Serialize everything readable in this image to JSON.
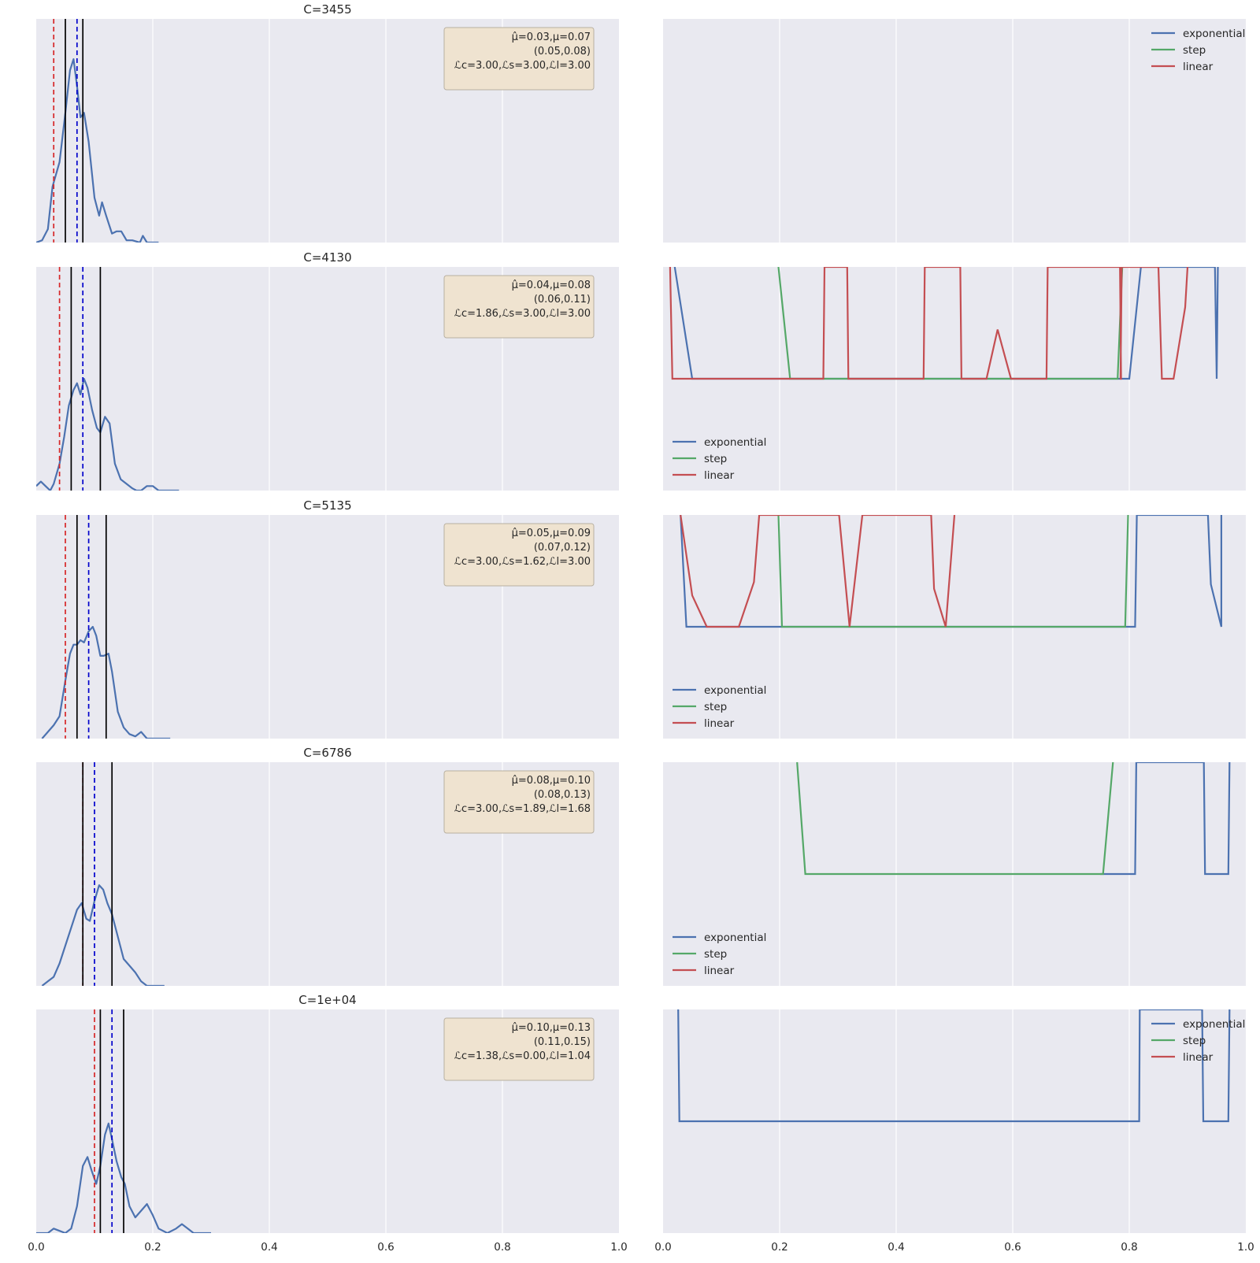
{
  "chart_data": [
    {
      "type": "line",
      "panel": "left",
      "title": "C=3455",
      "xlim": [
        0,
        1
      ],
      "grid": true,
      "x_ticks": [
        "0.0",
        "0.2",
        "0.4",
        "0.6",
        "0.8",
        "1.0"
      ],
      "vlines": [
        {
          "x": 0.03,
          "style": "dashed",
          "color": "#d62728"
        },
        {
          "x": 0.07,
          "style": "dashed",
          "color": "#0000cc"
        },
        {
          "x": 0.05,
          "style": "solid",
          "color": "#000000"
        },
        {
          "x": 0.08,
          "style": "solid",
          "color": "#000000"
        }
      ],
      "annotation": {
        "lines": [
          "μ̂=0.03,μ=0.07",
          "(0.05,0.08)",
          "ℒc=3.00,ℒs=3.00,ℒl=3.00"
        ],
        "placement": "top-right"
      },
      "density": [
        [
          0.0,
          0
        ],
        [
          0.01,
          0.01
        ],
        [
          0.02,
          0.06
        ],
        [
          0.028,
          0.25
        ],
        [
          0.04,
          0.36
        ],
        [
          0.05,
          0.58
        ],
        [
          0.058,
          0.77
        ],
        [
          0.064,
          0.82
        ],
        [
          0.07,
          0.7
        ],
        [
          0.076,
          0.56
        ],
        [
          0.082,
          0.58
        ],
        [
          0.09,
          0.45
        ],
        [
          0.1,
          0.2
        ],
        [
          0.108,
          0.12
        ],
        [
          0.113,
          0.18
        ],
        [
          0.12,
          0.12
        ],
        [
          0.13,
          0.04
        ],
        [
          0.138,
          0.05
        ],
        [
          0.146,
          0.05
        ],
        [
          0.155,
          0.01
        ],
        [
          0.165,
          0.01
        ],
        [
          0.178,
          0.0
        ],
        [
          0.183,
          0.03
        ],
        [
          0.19,
          0.0
        ],
        [
          0.21,
          0.0
        ]
      ]
    },
    {
      "type": "line",
      "panel": "right",
      "xlim": [
        0,
        1
      ],
      "grid": true,
      "x_ticks": [
        "0.0",
        "0.2",
        "0.4",
        "0.6",
        "0.8",
        "1.0"
      ],
      "legend": {
        "placement": "top-right"
      },
      "series": [
        {
          "name": "exponential",
          "color": "#4c72b0",
          "points": []
        },
        {
          "name": "step",
          "color": "#55a868",
          "points": []
        },
        {
          "name": "linear",
          "color": "#c44e52",
          "points": []
        }
      ]
    },
    {
      "type": "line",
      "panel": "left",
      "title": "C=4130",
      "xlim": [
        0,
        1
      ],
      "grid": true,
      "x_ticks": [
        "0.0",
        "0.2",
        "0.4",
        "0.6",
        "0.8",
        "1.0"
      ],
      "vlines": [
        {
          "x": 0.04,
          "style": "dashed",
          "color": "#d62728"
        },
        {
          "x": 0.08,
          "style": "dashed",
          "color": "#0000cc"
        },
        {
          "x": 0.06,
          "style": "solid",
          "color": "#000000"
        },
        {
          "x": 0.11,
          "style": "solid",
          "color": "#000000"
        }
      ],
      "annotation": {
        "lines": [
          "μ̂=0.04,μ=0.08",
          "(0.06,0.11)",
          "ℒc=1.86,ℒs=3.00,ℒl=3.00"
        ],
        "placement": "top-right"
      },
      "density": [
        [
          0.0,
          0.02
        ],
        [
          0.008,
          0.04
        ],
        [
          0.016,
          0.02
        ],
        [
          0.024,
          0.0
        ],
        [
          0.03,
          0.03
        ],
        [
          0.04,
          0.12
        ],
        [
          0.048,
          0.24
        ],
        [
          0.056,
          0.38
        ],
        [
          0.064,
          0.45
        ],
        [
          0.07,
          0.48
        ],
        [
          0.076,
          0.43
        ],
        [
          0.082,
          0.5
        ],
        [
          0.088,
          0.46
        ],
        [
          0.096,
          0.36
        ],
        [
          0.104,
          0.28
        ],
        [
          0.11,
          0.26
        ],
        [
          0.118,
          0.33
        ],
        [
          0.126,
          0.3
        ],
        [
          0.135,
          0.12
        ],
        [
          0.145,
          0.05
        ],
        [
          0.155,
          0.03
        ],
        [
          0.165,
          0.01
        ],
        [
          0.172,
          0.0
        ],
        [
          0.18,
          0.0
        ],
        [
          0.19,
          0.02
        ],
        [
          0.2,
          0.02
        ],
        [
          0.21,
          0.0
        ],
        [
          0.245,
          0.0
        ]
      ]
    },
    {
      "type": "line",
      "panel": "right",
      "xlim": [
        0,
        1
      ],
      "grid": true,
      "x_ticks": [
        "0.0",
        "0.2",
        "0.4",
        "0.6",
        "0.8",
        "1.0"
      ],
      "legend": {
        "placement": "bottom-left"
      },
      "series": [
        {
          "name": "exponential",
          "color": "#4c72b0",
          "points": [
            [
              0.02,
              1.0
            ],
            [
              0.05,
              0.5
            ],
            [
              0.8,
              0.5
            ],
            [
              0.82,
              1.0
            ],
            [
              0.947,
              1.0
            ],
            [
              0.95,
              0.5
            ],
            [
              0.952,
              1.0
            ]
          ]
        },
        {
          "name": "step",
          "color": "#55a868",
          "points": [
            [
              0.198,
              1.0
            ],
            [
              0.218,
              0.5
            ],
            [
              0.78,
              0.5
            ],
            [
              0.788,
              1.0
            ]
          ]
        },
        {
          "name": "linear",
          "color": "#c44e52",
          "points": [
            [
              0.012,
              1.0
            ],
            [
              0.016,
              0.5
            ],
            [
              0.275,
              0.5
            ],
            [
              0.277,
              1.0
            ],
            [
              0.316,
              1.0
            ],
            [
              0.318,
              0.5
            ],
            [
              0.447,
              0.5
            ],
            [
              0.449,
              1.0
            ],
            [
              0.51,
              1.0
            ],
            [
              0.512,
              0.5
            ],
            [
              0.555,
              0.5
            ],
            [
              0.574,
              0.72
            ],
            [
              0.597,
              0.5
            ],
            [
              0.658,
              0.5
            ],
            [
              0.66,
              1.0
            ],
            [
              0.784,
              1.0
            ],
            [
              0.786,
              0.5
            ],
            [
              0.785,
              0.5
            ],
            [
              0.787,
              1.0
            ],
            [
              0.85,
              1.0
            ],
            [
              0.856,
              0.5
            ],
            [
              0.876,
              0.5
            ],
            [
              0.896,
              0.82
            ],
            [
              0.9,
              1.0
            ]
          ]
        }
      ]
    },
    {
      "type": "line",
      "panel": "left",
      "title": "C=5135",
      "xlim": [
        0,
        1
      ],
      "grid": true,
      "x_ticks": [
        "0.0",
        "0.2",
        "0.4",
        "0.6",
        "0.8",
        "1.0"
      ],
      "vlines": [
        {
          "x": 0.05,
          "style": "dashed",
          "color": "#d62728"
        },
        {
          "x": 0.09,
          "style": "dashed",
          "color": "#0000cc"
        },
        {
          "x": 0.07,
          "style": "solid",
          "color": "#000000"
        },
        {
          "x": 0.12,
          "style": "solid",
          "color": "#000000"
        }
      ],
      "annotation": {
        "lines": [
          "μ̂=0.05,μ=0.09",
          "(0.07,0.12)",
          "ℒc=3.00,ℒs=1.62,ℒl=3.00"
        ],
        "placement": "top-right"
      },
      "density": [
        [
          0.01,
          0.0
        ],
        [
          0.02,
          0.03
        ],
        [
          0.03,
          0.06
        ],
        [
          0.04,
          0.1
        ],
        [
          0.05,
          0.26
        ],
        [
          0.058,
          0.38
        ],
        [
          0.064,
          0.42
        ],
        [
          0.07,
          0.42
        ],
        [
          0.076,
          0.44
        ],
        [
          0.082,
          0.43
        ],
        [
          0.09,
          0.48
        ],
        [
          0.097,
          0.5
        ],
        [
          0.103,
          0.46
        ],
        [
          0.11,
          0.37
        ],
        [
          0.116,
          0.37
        ],
        [
          0.124,
          0.38
        ],
        [
          0.13,
          0.3
        ],
        [
          0.14,
          0.12
        ],
        [
          0.15,
          0.05
        ],
        [
          0.16,
          0.02
        ],
        [
          0.17,
          0.01
        ],
        [
          0.18,
          0.03
        ],
        [
          0.19,
          0.0
        ],
        [
          0.23,
          0.0
        ]
      ]
    },
    {
      "type": "line",
      "panel": "right",
      "xlim": [
        0,
        1
      ],
      "grid": true,
      "x_ticks": [
        "0.0",
        "0.2",
        "0.4",
        "0.6",
        "0.8",
        "1.0"
      ],
      "legend": {
        "placement": "bottom-left"
      },
      "series": [
        {
          "name": "exponential",
          "color": "#4c72b0",
          "points": [
            [
              0.03,
              1.0
            ],
            [
              0.04,
              0.5
            ],
            [
              0.81,
              0.5
            ],
            [
              0.813,
              1.0
            ],
            [
              0.935,
              1.0
            ],
            [
              0.94,
              0.69
            ],
            [
              0.958,
              0.5
            ],
            [
              0.958,
              1.0
            ]
          ]
        },
        {
          "name": "step",
          "color": "#55a868",
          "points": [
            [
              0.198,
              1.0
            ],
            [
              0.204,
              0.5
            ],
            [
              0.793,
              0.5
            ],
            [
              0.798,
              1.0
            ]
          ]
        },
        {
          "name": "linear",
          "color": "#c44e52",
          "points": [
            [
              0.03,
              1.0
            ],
            [
              0.05,
              0.64
            ],
            [
              0.075,
              0.5
            ],
            [
              0.13,
              0.5
            ],
            [
              0.156,
              0.7
            ],
            [
              0.165,
              1.0
            ],
            [
              0.302,
              1.0
            ],
            [
              0.32,
              0.5
            ],
            [
              0.342,
              1.0
            ],
            [
              0.46,
              1.0
            ],
            [
              0.465,
              0.67
            ],
            [
              0.485,
              0.5
            ],
            [
              0.5,
              1.0
            ]
          ]
        }
      ]
    },
    {
      "type": "line",
      "panel": "left",
      "title": "C=6786",
      "xlim": [
        0,
        1
      ],
      "grid": true,
      "x_ticks": [
        "0.0",
        "0.2",
        "0.4",
        "0.6",
        "0.8",
        "1.0"
      ],
      "vlines": [
        {
          "x": 0.08,
          "style": "dashed",
          "color": "#d62728"
        },
        {
          "x": 0.1,
          "style": "dashed",
          "color": "#0000cc"
        },
        {
          "x": 0.08,
          "style": "solid",
          "color": "#000000"
        },
        {
          "x": 0.13,
          "style": "solid",
          "color": "#000000"
        }
      ],
      "annotation": {
        "lines": [
          "μ̂=0.08,μ=0.10",
          "(0.08,0.13)",
          "ℒc=3.00,ℒs=1.89,ℒl=1.68"
        ],
        "placement": "top-right"
      },
      "density": [
        [
          0.01,
          0.0
        ],
        [
          0.02,
          0.02
        ],
        [
          0.03,
          0.04
        ],
        [
          0.04,
          0.1
        ],
        [
          0.05,
          0.18
        ],
        [
          0.06,
          0.26
        ],
        [
          0.07,
          0.34
        ],
        [
          0.078,
          0.37
        ],
        [
          0.086,
          0.3
        ],
        [
          0.092,
          0.29
        ],
        [
          0.1,
          0.38
        ],
        [
          0.108,
          0.45
        ],
        [
          0.115,
          0.43
        ],
        [
          0.122,
          0.37
        ],
        [
          0.13,
          0.32
        ],
        [
          0.14,
          0.22
        ],
        [
          0.15,
          0.12
        ],
        [
          0.16,
          0.09
        ],
        [
          0.17,
          0.06
        ],
        [
          0.18,
          0.02
        ],
        [
          0.19,
          0.0
        ],
        [
          0.22,
          0.0
        ]
      ]
    },
    {
      "type": "line",
      "panel": "right",
      "xlim": [
        0,
        1
      ],
      "grid": true,
      "x_ticks": [
        "0.0",
        "0.2",
        "0.4",
        "0.6",
        "0.8",
        "1.0"
      ],
      "legend": {
        "placement": "bottom-left"
      },
      "series": [
        {
          "name": "exponential",
          "color": "#4c72b0",
          "points": [
            [
              0.75,
              0.5
            ],
            [
              0.81,
              0.5
            ],
            [
              0.812,
              1.0
            ],
            [
              0.928,
              1.0
            ],
            [
              0.93,
              0.5
            ],
            [
              0.97,
              0.5
            ],
            [
              0.972,
              1.0
            ]
          ]
        },
        {
          "name": "step",
          "color": "#55a868",
          "points": [
            [
              0.23,
              1.0
            ],
            [
              0.244,
              0.5
            ],
            [
              0.755,
              0.5
            ],
            [
              0.772,
              1.0
            ]
          ]
        },
        {
          "name": "linear",
          "color": "#c44e52",
          "points": []
        }
      ]
    },
    {
      "type": "line",
      "panel": "left",
      "title": "C=1e+04",
      "xlim": [
        0,
        1
      ],
      "grid": true,
      "x_ticks": [
        "0.0",
        "0.2",
        "0.4",
        "0.6",
        "0.8",
        "1.0"
      ],
      "vlines": [
        {
          "x": 0.1,
          "style": "dashed",
          "color": "#d62728"
        },
        {
          "x": 0.13,
          "style": "dashed",
          "color": "#0000cc"
        },
        {
          "x": 0.11,
          "style": "solid",
          "color": "#000000"
        },
        {
          "x": 0.15,
          "style": "solid",
          "color": "#000000"
        }
      ],
      "annotation": {
        "lines": [
          "μ̂=0.10,μ=0.13",
          "(0.11,0.15)",
          "ℒc=1.38,ℒs=0.00,ℒl=1.04"
        ],
        "placement": "top-right"
      },
      "density": [
        [
          0.0,
          0.0
        ],
        [
          0.02,
          0.0
        ],
        [
          0.03,
          0.02
        ],
        [
          0.04,
          0.01
        ],
        [
          0.05,
          0.0
        ],
        [
          0.06,
          0.02
        ],
        [
          0.07,
          0.12
        ],
        [
          0.08,
          0.3
        ],
        [
          0.088,
          0.34
        ],
        [
          0.095,
          0.28
        ],
        [
          0.103,
          0.22
        ],
        [
          0.11,
          0.3
        ],
        [
          0.118,
          0.44
        ],
        [
          0.124,
          0.49
        ],
        [
          0.13,
          0.42
        ],
        [
          0.138,
          0.32
        ],
        [
          0.146,
          0.25
        ],
        [
          0.152,
          0.22
        ],
        [
          0.16,
          0.12
        ],
        [
          0.17,
          0.07
        ],
        [
          0.18,
          0.1
        ],
        [
          0.19,
          0.13
        ],
        [
          0.2,
          0.08
        ],
        [
          0.21,
          0.02
        ],
        [
          0.225,
          0.0
        ],
        [
          0.24,
          0.02
        ],
        [
          0.25,
          0.04
        ],
        [
          0.26,
          0.02
        ],
        [
          0.27,
          0.0
        ],
        [
          0.3,
          0.0
        ]
      ]
    },
    {
      "type": "line",
      "panel": "right",
      "xlim": [
        0,
        1
      ],
      "grid": true,
      "x_ticks": [
        "0.0",
        "0.2",
        "0.4",
        "0.6",
        "0.8",
        "1.0"
      ],
      "legend": {
        "placement": "top-right"
      },
      "series": [
        {
          "name": "exponential",
          "color": "#4c72b0",
          "points": [
            [
              0.026,
              1.0
            ],
            [
              0.028,
              0.5
            ],
            [
              0.817,
              0.5
            ],
            [
              0.818,
              1.0
            ],
            [
              0.925,
              1.0
            ],
            [
              0.927,
              0.5
            ],
            [
              0.97,
              0.5
            ],
            [
              0.972,
              1.0
            ]
          ]
        },
        {
          "name": "step",
          "color": "#55a868",
          "points": []
        },
        {
          "name": "linear",
          "color": "#c44e52",
          "points": []
        }
      ]
    }
  ]
}
